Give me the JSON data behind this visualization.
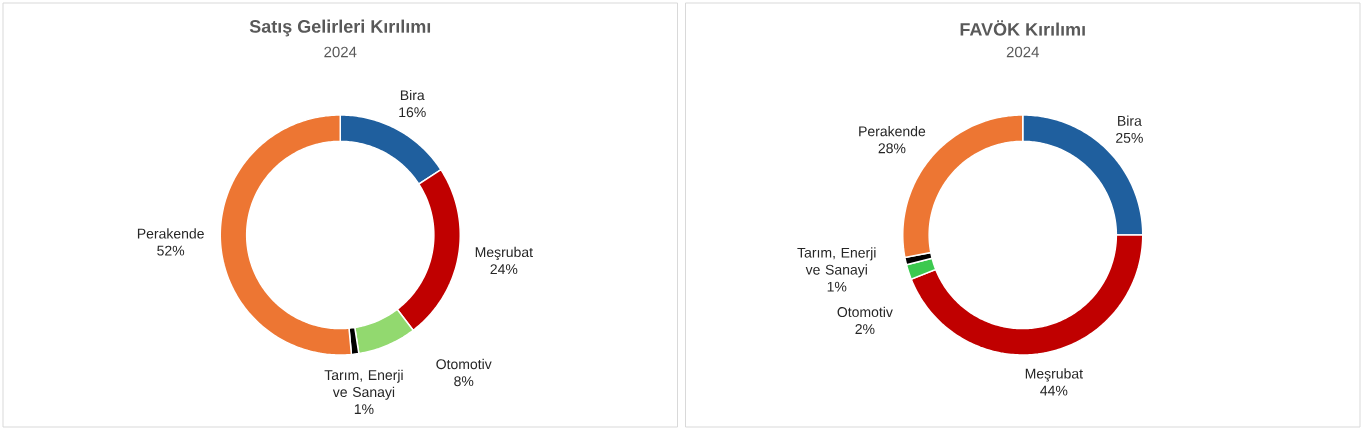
{
  "chart_data": [
    {
      "type": "donut",
      "title": "Satış Gelirleri Kırılımı",
      "subtitle": "2024",
      "categories": [
        "Bira",
        "Meşrubat",
        "Otomotiv",
        "Tarım, Enerji ve Sanayi",
        "Perakende"
      ],
      "values": [
        16,
        24,
        8,
        1,
        52
      ],
      "value_labels": [
        "16%",
        "24%",
        "8%",
        "1%",
        "52%"
      ],
      "colors": [
        "#1f5f9e",
        "#c00000",
        "#92d96f",
        "#000000",
        "#ed7633"
      ]
    },
    {
      "type": "donut",
      "title": "FAVÖK Kırılımı",
      "subtitle": "2024",
      "categories": [
        "Bira",
        "Meşrubat",
        "Otomotiv",
        "Tarım, Enerji ve Sanayi",
        "Perakende"
      ],
      "values": [
        25,
        44,
        2,
        1,
        28
      ],
      "value_labels": [
        "25%",
        "44%",
        "2%",
        "1%",
        "28%"
      ],
      "colors": [
        "#1f5f9e",
        "#c00000",
        "#3cc94f",
        "#000000",
        "#ed7633"
      ]
    }
  ]
}
